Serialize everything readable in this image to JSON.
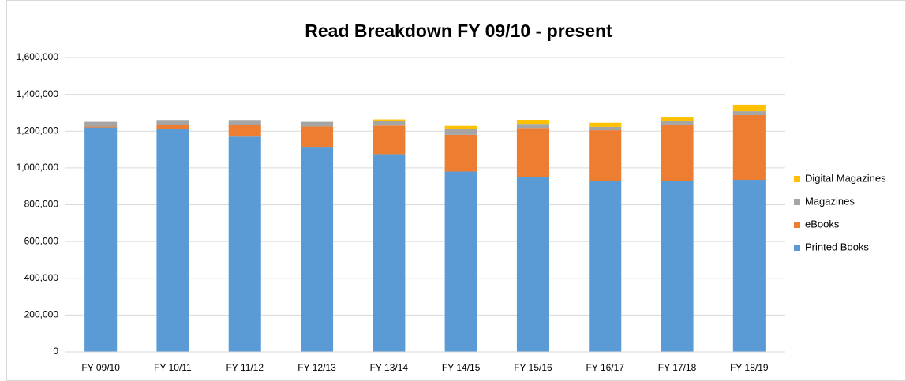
{
  "chart_data": {
    "type": "stacked_bar",
    "title": "Read Breakdown FY 09/10 - present",
    "categories": [
      "FY 09/10",
      "FY 10/11",
      "FY 11/12",
      "FY 12/13",
      "FY 13/14",
      "FY 14/15",
      "FY 15/16",
      "FY 16/17",
      "FY 17/18",
      "FY 18/19"
    ],
    "series": [
      {
        "name": "Printed Books",
        "color": "#5b9bd5",
        "values": [
          1220000,
          1210000,
          1170000,
          1115000,
          1075000,
          980000,
          952000,
          927000,
          927000,
          935000
        ]
      },
      {
        "name": "eBooks",
        "color": "#ed7d31",
        "values": [
          5000,
          25000,
          65000,
          110000,
          155000,
          200000,
          265000,
          278000,
          308000,
          352000
        ]
      },
      {
        "name": "Magazines",
        "color": "#a5a5a5",
        "values": [
          25000,
          25000,
          25000,
          25000,
          25000,
          30000,
          22000,
          18000,
          18000,
          21000
        ]
      },
      {
        "name": "Digital Magazines",
        "color": "#ffc000",
        "values": [
          0,
          0,
          0,
          0,
          8000,
          18000,
          22000,
          22000,
          25000,
          35000
        ]
      }
    ],
    "ylim": [
      0,
      1600000
    ],
    "yticks": [
      0,
      {
        "value": 200000,
        "label": "200,000"
      },
      {
        "value": 400000,
        "label": "400,000"
      },
      {
        "value": 600000,
        "label": "600,000"
      },
      {
        "value": 800000,
        "label": "800,000"
      },
      {
        "value": 1000000,
        "label": "1,000,000"
      },
      {
        "value": 1200000,
        "label": "1,200,000"
      },
      {
        "value": 1400000,
        "label": "1,400,000"
      },
      {
        "value": 1600000,
        "label": "1,600,000"
      }
    ],
    "grid": true,
    "legend": "right"
  }
}
